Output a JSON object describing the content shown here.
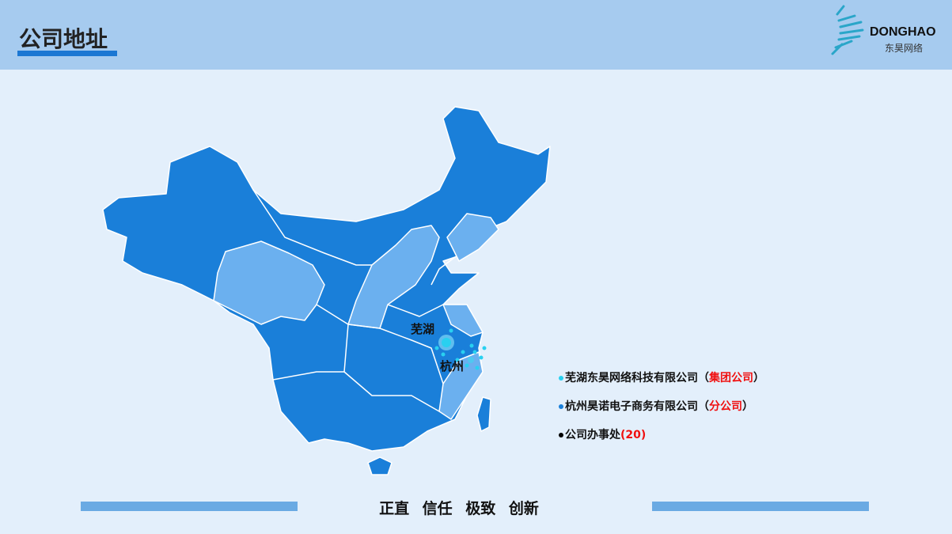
{
  "header": {
    "title": "公司地址",
    "logo_en": "DONGHAO",
    "logo_cn": "东昊网络"
  },
  "map": {
    "cities": [
      {
        "name": "芜湖"
      },
      {
        "name": "杭州"
      }
    ],
    "colors": {
      "province": "#1a7fd9",
      "highlight": "#6bb0ef",
      "marker": "#29d0f0"
    }
  },
  "legend": [
    {
      "name": "芜湖东昊网络科技有限公司",
      "tag_open": "（",
      "tag": "集团公司",
      "tag_close": "）",
      "color": "#29d0f0"
    },
    {
      "name": "杭州昊诺电子商务有限公司",
      "tag_open": "（",
      "tag": "分公司",
      "tag_close": "）",
      "color": "#1a7fd9"
    },
    {
      "name": "公司办事处",
      "tag_open": "(",
      "tag": "20",
      "tag_close": ")",
      "color": "#000000"
    }
  ],
  "footer": {
    "motto": "正直 信任 极致 创新"
  }
}
